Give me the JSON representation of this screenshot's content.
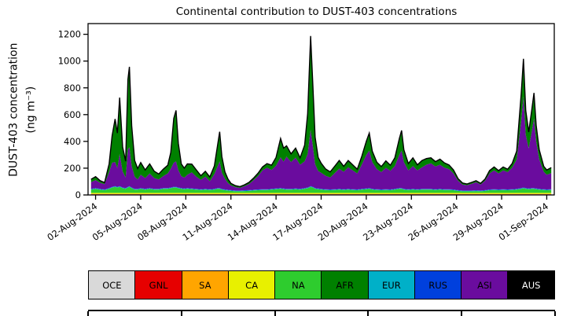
{
  "chart_data": {
    "type": "area",
    "stacked": true,
    "title": "Continental contribution to DUST-403 concentrations",
    "ylabel_line1": "DUST-403 concentration",
    "ylabel_line2": "(ng m⁻³)",
    "ylim": [
      0,
      1280
    ],
    "xlim": [
      1.5,
      32.5
    ],
    "grid": false,
    "legend_position": "bottom",
    "y_ticks": [
      0,
      200,
      400,
      600,
      800,
      1000,
      1200
    ],
    "x_ticks": [
      {
        "t": 2,
        "label": "02-Aug-2024"
      },
      {
        "t": 5,
        "label": "05-Aug-2024"
      },
      {
        "t": 8,
        "label": "08-Aug-2024"
      },
      {
        "t": 11,
        "label": "11-Aug-2024"
      },
      {
        "t": 14,
        "label": "14-Aug-2024"
      },
      {
        "t": 17,
        "label": "17-Aug-2024"
      },
      {
        "t": 20,
        "label": "20-Aug-2024"
      },
      {
        "t": 23,
        "label": "23-Aug-2024"
      },
      {
        "t": 26,
        "label": "26-Aug-2024"
      },
      {
        "t": 29,
        "label": "29-Aug-2024"
      },
      {
        "t": 32,
        "label": "01-Sep-2024"
      }
    ],
    "series_names": [
      "OCE",
      "GNL",
      "SA",
      "CA",
      "NA",
      "AFR",
      "EUR",
      "RUS",
      "ASI",
      "AUS"
    ],
    "stack_order": [
      "OCE",
      "GNL",
      "SA",
      "CA",
      "NA",
      "EUR",
      "RUS",
      "ASI",
      "AFR",
      "AUS"
    ],
    "base_values": {
      "OCE": 4,
      "GNL": 2,
      "SA": 2,
      "CA": 7,
      "EUR": 3,
      "RUS": 3,
      "AUS": 1
    },
    "colors": {
      "OCE": "#d9d9d9",
      "GNL": "#e60000",
      "SA": "#ffa500",
      "CA": "#e8f000",
      "NA": "#2ecc2e",
      "AFR": "#008000",
      "EUR": "#00b0c8",
      "RUS": "#0040dd",
      "ASI": "#6a0c9e",
      "AUS": "#000000"
    },
    "outline_color": "#000000",
    "point_columns": [
      "t_days_aug2024",
      "NA",
      "AFR",
      "ASI"
    ],
    "points": [
      [
        1.7,
        25,
        20,
        50
      ],
      [
        2.0,
        30,
        25,
        60
      ],
      [
        2.3,
        25,
        15,
        45
      ],
      [
        2.6,
        20,
        10,
        40
      ],
      [
        2.9,
        30,
        60,
        120
      ],
      [
        3.1,
        40,
        200,
        180
      ],
      [
        3.3,
        45,
        320,
        180
      ],
      [
        3.45,
        40,
        260,
        140
      ],
      [
        3.6,
        45,
        420,
        240
      ],
      [
        3.8,
        35,
        180,
        120
      ],
      [
        4.0,
        30,
        120,
        80
      ],
      [
        4.15,
        40,
        520,
        280
      ],
      [
        4.25,
        45,
        600,
        290
      ],
      [
        4.4,
        35,
        300,
        160
      ],
      [
        4.6,
        25,
        120,
        90
      ],
      [
        4.8,
        25,
        80,
        70
      ],
      [
        5.0,
        30,
        90,
        100
      ],
      [
        5.3,
        25,
        60,
        80
      ],
      [
        5.6,
        30,
        70,
        110
      ],
      [
        5.9,
        25,
        50,
        80
      ],
      [
        6.2,
        25,
        40,
        70
      ],
      [
        6.5,
        30,
        50,
        90
      ],
      [
        6.8,
        30,
        60,
        110
      ],
      [
        7.0,
        35,
        120,
        140
      ],
      [
        7.2,
        40,
        330,
        180
      ],
      [
        7.35,
        40,
        380,
        190
      ],
      [
        7.5,
        35,
        200,
        130
      ],
      [
        7.7,
        30,
        90,
        90
      ],
      [
        7.9,
        28,
        70,
        80
      ],
      [
        8.1,
        30,
        80,
        100
      ],
      [
        8.4,
        28,
        60,
        120
      ],
      [
        8.7,
        25,
        50,
        90
      ],
      [
        9.0,
        22,
        30,
        70
      ],
      [
        9.3,
        25,
        40,
        90
      ],
      [
        9.6,
        22,
        30,
        60
      ],
      [
        9.9,
        25,
        60,
        110
      ],
      [
        10.1,
        30,
        150,
        160
      ],
      [
        10.25,
        30,
        220,
        200
      ],
      [
        10.4,
        25,
        120,
        120
      ],
      [
        10.6,
        20,
        50,
        80
      ],
      [
        10.8,
        18,
        30,
        50
      ],
      [
        11.0,
        15,
        15,
        35
      ],
      [
        11.3,
        12,
        10,
        25
      ],
      [
        11.6,
        12,
        8,
        20
      ],
      [
        11.9,
        14,
        10,
        30
      ],
      [
        12.2,
        15,
        12,
        45
      ],
      [
        12.5,
        18,
        15,
        70
      ],
      [
        12.8,
        20,
        20,
        100
      ],
      [
        13.1,
        22,
        25,
        140
      ],
      [
        13.4,
        22,
        30,
        160
      ],
      [
        13.7,
        25,
        35,
        140
      ],
      [
        14.0,
        28,
        60,
        170
      ],
      [
        14.3,
        30,
        140,
        230
      ],
      [
        14.5,
        28,
        100,
        200
      ],
      [
        14.7,
        25,
        80,
        240
      ],
      [
        15.0,
        25,
        60,
        200
      ],
      [
        15.3,
        28,
        70,
        230
      ],
      [
        15.6,
        25,
        50,
        180
      ],
      [
        15.9,
        30,
        120,
        200
      ],
      [
        16.1,
        35,
        300,
        250
      ],
      [
        16.3,
        45,
        700,
        420
      ],
      [
        16.45,
        40,
        450,
        300
      ],
      [
        16.6,
        30,
        200,
        180
      ],
      [
        16.8,
        28,
        100,
        130
      ],
      [
        17.0,
        25,
        70,
        120
      ],
      [
        17.3,
        22,
        50,
        100
      ],
      [
        17.6,
        20,
        40,
        90
      ],
      [
        17.9,
        22,
        50,
        120
      ],
      [
        18.2,
        25,
        60,
        150
      ],
      [
        18.5,
        22,
        40,
        130
      ],
      [
        18.8,
        25,
        50,
        160
      ],
      [
        19.1,
        22,
        40,
        140
      ],
      [
        19.4,
        20,
        30,
        120
      ],
      [
        19.7,
        25,
        60,
        180
      ],
      [
        20.0,
        28,
        100,
        250
      ],
      [
        20.2,
        30,
        130,
        280
      ],
      [
        20.4,
        25,
        80,
        200
      ],
      [
        20.7,
        22,
        50,
        150
      ],
      [
        21.0,
        20,
        40,
        130
      ],
      [
        21.3,
        22,
        50,
        160
      ],
      [
        21.6,
        20,
        40,
        140
      ],
      [
        21.9,
        25,
        60,
        170
      ],
      [
        22.2,
        30,
        120,
        250
      ],
      [
        22.35,
        30,
        150,
        280
      ],
      [
        22.5,
        25,
        90,
        200
      ],
      [
        22.8,
        22,
        50,
        140
      ],
      [
        23.1,
        25,
        60,
        170
      ],
      [
        23.4,
        22,
        40,
        140
      ],
      [
        23.7,
        25,
        50,
        160
      ],
      [
        24.0,
        25,
        45,
        180
      ],
      [
        24.3,
        25,
        40,
        190
      ],
      [
        24.6,
        22,
        35,
        170
      ],
      [
        24.9,
        25,
        40,
        180
      ],
      [
        25.2,
        22,
        35,
        160
      ],
      [
        25.5,
        22,
        30,
        150
      ],
      [
        25.8,
        20,
        25,
        120
      ],
      [
        26.1,
        15,
        15,
        70
      ],
      [
        26.4,
        12,
        10,
        45
      ],
      [
        26.7,
        12,
        8,
        40
      ],
      [
        27.0,
        12,
        10,
        50
      ],
      [
        27.3,
        14,
        10,
        60
      ],
      [
        27.6,
        12,
        8,
        45
      ],
      [
        27.9,
        15,
        12,
        70
      ],
      [
        28.2,
        20,
        20,
        120
      ],
      [
        28.5,
        22,
        25,
        140
      ],
      [
        28.8,
        20,
        20,
        120
      ],
      [
        29.1,
        22,
        25,
        140
      ],
      [
        29.4,
        20,
        20,
        130
      ],
      [
        29.7,
        22,
        30,
        160
      ],
      [
        30.0,
        25,
        60,
        220
      ],
      [
        30.3,
        30,
        200,
        500
      ],
      [
        30.45,
        35,
        280,
        680
      ],
      [
        30.6,
        30,
        180,
        400
      ],
      [
        30.8,
        28,
        120,
        300
      ],
      [
        31.0,
        30,
        160,
        420
      ],
      [
        31.15,
        30,
        190,
        520
      ],
      [
        31.3,
        28,
        120,
        350
      ],
      [
        31.5,
        25,
        70,
        220
      ],
      [
        31.8,
        22,
        40,
        130
      ],
      [
        32.0,
        20,
        35,
        110
      ],
      [
        32.3,
        22,
        40,
        120
      ]
    ]
  },
  "legend": {
    "items": [
      {
        "label": "OCE",
        "color": "#d9d9d9",
        "text": "#000000"
      },
      {
        "label": "GNL",
        "color": "#e60000",
        "text": "#000000"
      },
      {
        "label": "SA",
        "color": "#ffa500",
        "text": "#000000"
      },
      {
        "label": "CA",
        "color": "#e8f000",
        "text": "#000000"
      },
      {
        "label": "NA",
        "color": "#2ecc2e",
        "text": "#000000"
      },
      {
        "label": "AFR",
        "color": "#008000",
        "text": "#000000"
      },
      {
        "label": "EUR",
        "color": "#00b0c8",
        "text": "#000000"
      },
      {
        "label": "RUS",
        "color": "#0040dd",
        "text": "#000000"
      },
      {
        "label": "ASI",
        "color": "#6a0c9e",
        "text": "#000000"
      },
      {
        "label": "AUS",
        "color": "#000000",
        "text": "#ffffff"
      }
    ]
  }
}
